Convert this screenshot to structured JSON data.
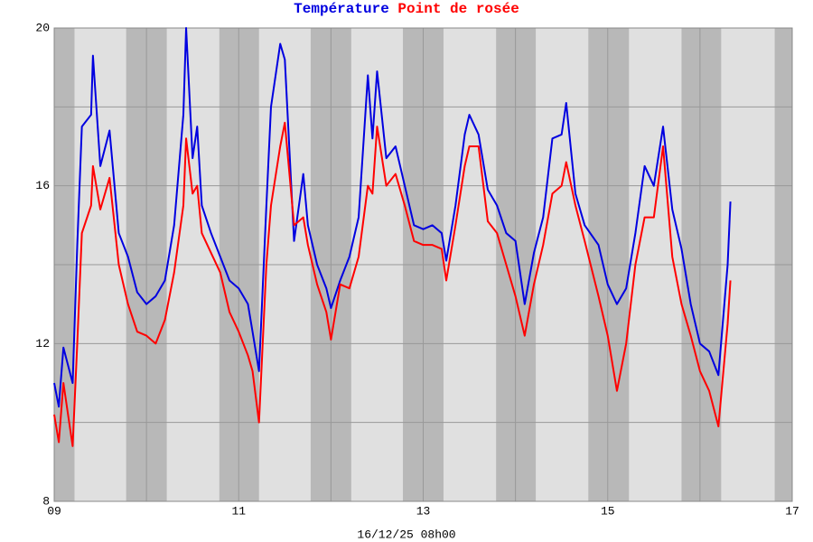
{
  "chart_data": {
    "type": "line",
    "series": [
      {
        "name": "Température",
        "color": "#0000e0",
        "values": [
          11.0,
          10.4,
          11.9,
          11.0,
          14.5,
          17.5,
          17.8,
          19.3,
          16.5,
          17.4,
          14.8,
          14.2,
          13.3,
          13.0,
          13.2,
          13.6,
          15.0,
          17.8,
          20.0,
          16.7,
          17.5,
          15.5,
          14.8,
          14.2,
          13.6,
          13.4,
          13.0,
          12.3,
          11.3,
          15.5,
          18.0,
          19.6,
          19.2,
          14.6,
          16.3,
          15.0,
          14.0,
          13.4,
          12.9,
          13.6,
          14.2,
          15.2,
          18.8,
          17.2,
          18.9,
          16.7,
          17.0,
          16.0,
          15.0,
          14.9,
          15.0,
          14.8,
          14.1,
          15.5,
          17.3,
          17.8,
          17.3,
          15.9,
          15.5,
          14.8,
          14.6,
          13.0,
          14.3,
          15.2,
          17.2,
          17.3,
          18.1,
          15.8,
          15.0,
          14.5,
          13.5,
          13.0,
          13.4,
          14.8,
          16.5,
          16.0,
          17.5,
          15.4,
          14.4,
          13.0,
          12.0,
          11.8,
          11.2,
          14.0,
          15.6
        ]
      },
      {
        "name": "Point de rosée",
        "color": "#ff0000",
        "values": [
          10.2,
          9.5,
          11.0,
          9.4,
          12.0,
          14.8,
          15.5,
          16.5,
          15.4,
          16.2,
          14.0,
          13.0,
          12.3,
          12.2,
          12.0,
          12.6,
          13.8,
          15.5,
          17.2,
          15.8,
          16.0,
          14.8,
          14.3,
          13.8,
          12.8,
          12.3,
          11.7,
          11.3,
          10.0,
          14.0,
          15.5,
          17.0,
          17.6,
          15.0,
          15.2,
          14.5,
          13.5,
          12.8,
          12.1,
          13.5,
          13.4,
          14.2,
          16.0,
          15.8,
          17.5,
          16.0,
          16.3,
          15.5,
          14.6,
          14.5,
          14.5,
          14.4,
          13.6,
          15.0,
          16.5,
          17.0,
          17.0,
          15.1,
          14.8,
          14.0,
          13.2,
          12.2,
          13.5,
          14.5,
          15.8,
          16.0,
          16.6,
          15.5,
          14.6,
          13.2,
          12.2,
          10.8,
          12.0,
          14.0,
          15.2,
          15.2,
          17.0,
          14.2,
          13.0,
          12.2,
          11.3,
          10.8,
          9.9,
          12.5,
          13.6
        ]
      }
    ],
    "x": [
      9.0,
      9.05,
      9.1,
      9.2,
      9.25,
      9.3,
      9.4,
      9.42,
      9.5,
      9.6,
      9.7,
      9.8,
      9.9,
      10.0,
      10.1,
      10.2,
      10.3,
      10.4,
      10.43,
      10.5,
      10.55,
      10.6,
      10.7,
      10.8,
      10.9,
      11.0,
      11.1,
      11.15,
      11.22,
      11.3,
      11.35,
      11.45,
      11.5,
      11.6,
      11.7,
      11.75,
      11.85,
      11.95,
      12.0,
      12.1,
      12.2,
      12.3,
      12.4,
      12.45,
      12.5,
      12.6,
      12.7,
      12.8,
      12.9,
      13.0,
      13.1,
      13.2,
      13.25,
      13.35,
      13.45,
      13.5,
      13.6,
      13.7,
      13.8,
      13.9,
      14.0,
      14.1,
      14.2,
      14.3,
      14.4,
      14.5,
      14.55,
      14.65,
      14.75,
      14.9,
      15.0,
      15.1,
      15.2,
      15.3,
      15.4,
      15.5,
      15.6,
      15.7,
      15.8,
      15.9,
      16.0,
      16.1,
      16.2,
      16.3,
      16.33
    ],
    "xlabel": "16/12/25 08h00",
    "xlim": [
      9,
      17
    ],
    "xticks": [
      {
        "value": 9,
        "label": "09"
      },
      11,
      13,
      15,
      17
    ],
    "xgrid": [
      10,
      12,
      14,
      16
    ],
    "ylim": [
      8,
      20
    ],
    "yticks": [
      8,
      12,
      16,
      20
    ],
    "ygrid": [
      10,
      14,
      18
    ],
    "night_bands": [
      [
        9.0,
        9.22
      ],
      [
        9.78,
        10.22
      ],
      [
        10.79,
        11.22
      ],
      [
        11.78,
        12.22
      ],
      [
        12.78,
        13.22
      ],
      [
        13.79,
        14.22
      ],
      [
        14.79,
        15.23
      ],
      [
        15.8,
        16.23
      ],
      [
        16.81,
        17.0
      ]
    ],
    "background": "#e0e0e0",
    "band_color": "#b8b8b8",
    "grid_color": "#999999",
    "grid": true
  }
}
